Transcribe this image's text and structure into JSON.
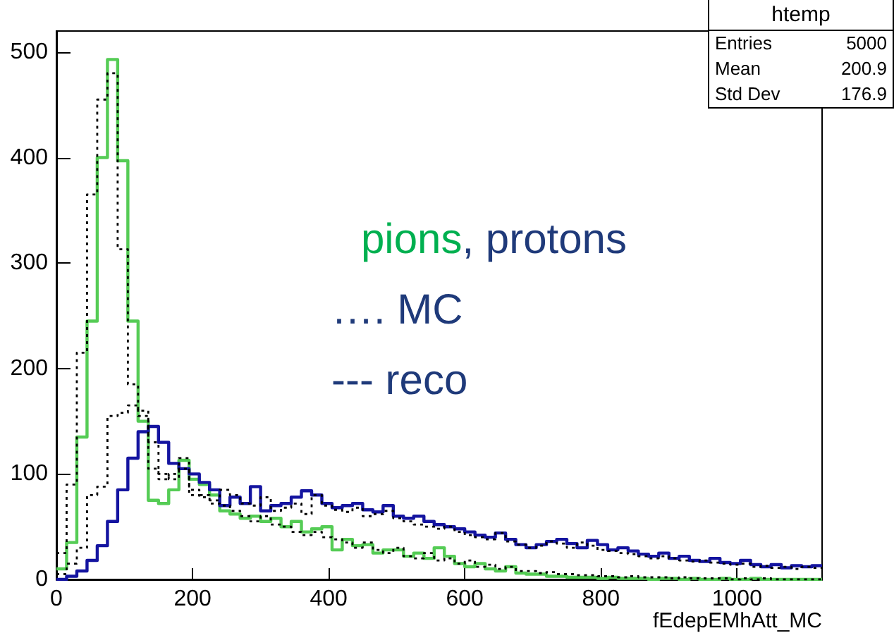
{
  "chart_data": {
    "type": "histogram",
    "xlabel": "fEdepEMhAtt_MC",
    "annotations": [
      "pions",
      ", protons",
      "…. MC",
      "--- reco",
      "htemp",
      "Entries",
      "5000",
      "Mean",
      "200.9",
      "Std Dev",
      "176.9"
    ],
    "bins": [
      0,
      15,
      30,
      45,
      60,
      75,
      90,
      105,
      120,
      135,
      150,
      165,
      180,
      195,
      210,
      225,
      240,
      255,
      270,
      285,
      300,
      315,
      330,
      345,
      360,
      375,
      390,
      405,
      420,
      435,
      450,
      465,
      480,
      495,
      510,
      525,
      540,
      555,
      570,
      585,
      600,
      615,
      630,
      645,
      660,
      675,
      690,
      705,
      720,
      735,
      750,
      765,
      780,
      795,
      810,
      825,
      840,
      855,
      870,
      885,
      900,
      915,
      930,
      945,
      960,
      975,
      990,
      1005,
      1020,
      1035,
      1050,
      1065,
      1080,
      1095,
      1110,
      1125
    ],
    "series": [
      {
        "color": "#55cc55",
        "line_style": "solid",
        "values": [
          10,
          35,
          135,
          245,
          400,
          493,
          397,
          245,
          150,
          75,
          72,
          85,
          113,
          95,
          90,
          80,
          65,
          62,
          58,
          60,
          55,
          58,
          50,
          55,
          45,
          48,
          50,
          28,
          38,
          32,
          33,
          25,
          28,
          28,
          22,
          25,
          20,
          30,
          22,
          15,
          12,
          15,
          10,
          8,
          12,
          6,
          5,
          5,
          3,
          3,
          2,
          2,
          2,
          1,
          2,
          1,
          1,
          1,
          0,
          1,
          1,
          0,
          1,
          0,
          0,
          1,
          0,
          0,
          1,
          0,
          0,
          0,
          0,
          0,
          0
        ]
      },
      {
        "color": "#1414a0",
        "line_style": "solid",
        "values": [
          0,
          3,
          8,
          18,
          32,
          55,
          85,
          115,
          140,
          145,
          130,
          110,
          105,
          100,
          92,
          85,
          70,
          78,
          72,
          88,
          65,
          70,
          72,
          78,
          84,
          80,
          72,
          68,
          70,
          72,
          66,
          64,
          70,
          60,
          58,
          60,
          55,
          52,
          50,
          48,
          45,
          42,
          40,
          44,
          38,
          33,
          30,
          33,
          36,
          38,
          34,
          30,
          37,
          33,
          28,
          30,
          27,
          24,
          22,
          25,
          20,
          22,
          18,
          17,
          20,
          16,
          15,
          18,
          14,
          12,
          14,
          11,
          13,
          12,
          13
        ]
      },
      {
        "color": "#000000",
        "line_style": "dotted",
        "values": [
          25,
          90,
          215,
          365,
          455,
          480,
          313,
          185,
          160,
          105,
          95,
          100,
          115,
          80,
          78,
          72,
          70,
          65,
          60,
          55,
          60,
          52,
          50,
          45,
          42,
          45,
          40,
          38,
          35,
          30,
          35,
          28,
          25,
          30,
          22,
          20,
          25,
          18,
          20,
          15,
          18,
          12,
          14,
          10,
          12,
          8,
          8,
          6,
          7,
          5,
          5,
          4,
          4,
          3,
          3,
          2,
          3,
          2,
          2,
          2,
          1,
          2,
          1,
          1,
          1,
          1,
          0,
          1,
          0,
          1,
          0,
          0,
          0,
          0,
          0
        ]
      },
      {
        "color": "#000000",
        "line_style": "dotted",
        "values": [
          5,
          15,
          30,
          80,
          88,
          155,
          158,
          165,
          155,
          130,
          100,
          95,
          105,
          85,
          80,
          75,
          85,
          80,
          72,
          70,
          78,
          65,
          68,
          72,
          62,
          80,
          70,
          66,
          64,
          68,
          60,
          62,
          65,
          58,
          55,
          52,
          50,
          48,
          50,
          45,
          42,
          40,
          38,
          44,
          36,
          33,
          30,
          32,
          36,
          34,
          30,
          35,
          32,
          28,
          27,
          25,
          24,
          22,
          20,
          22,
          20,
          18,
          17,
          18,
          16,
          15,
          14,
          15,
          12,
          13,
          11,
          12,
          10,
          12,
          11
        ]
      }
    ],
    "xlim": [
      0,
      1125
    ],
    "xticks": [
      0,
      200,
      400,
      600,
      800,
      1000
    ],
    "ylim": [
      0,
      520
    ],
    "yticks": [
      0,
      100,
      200,
      300,
      400,
      500
    ]
  }
}
